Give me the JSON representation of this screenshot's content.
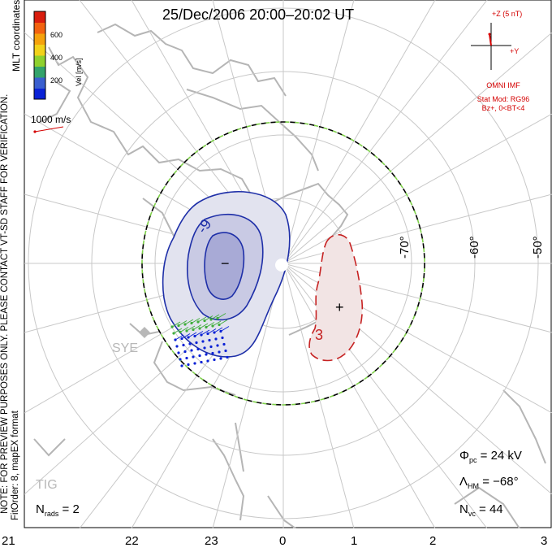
{
  "title": "25/Dec/2006 20:00–20:02 UT",
  "coords_note": "MLT coordinates",
  "colorbar": {
    "label": "Vel [m/s]",
    "ticks": [
      "600",
      "400",
      "200"
    ],
    "colors": [
      "#0a22d6",
      "#3a5fcf",
      "#33a36b",
      "#8fd12e",
      "#f2d21a",
      "#f5a20c",
      "#f2620f",
      "#d91d0e"
    ]
  },
  "reference_vector": "1000 m/s",
  "preview_note": "NOTE: FOR PREVIEW PURPOSES ONLY. PLEASE CONTACT VT-SD STAFF FOR VERIFICATION.",
  "fit_note": "FitOrder: 8, mapEX format",
  "imf": {
    "z_label": "+Z (5 nT)",
    "y_label": "+Y",
    "source": "OMNI IMF",
    "model": "Stat Mod: RG96",
    "conditions": "Bz+, 0<BT<4"
  },
  "mlt_ticks": [
    "21",
    "22",
    "23",
    "0",
    "1",
    "2",
    "3"
  ],
  "lat_labels": [
    "-70°",
    "-60°",
    "-50°"
  ],
  "sites": [
    "SYE",
    "TIG"
  ],
  "contours": {
    "neg_label": "-9",
    "pos_label": "3",
    "neg_sign": "−",
    "pos_sign": "+"
  },
  "stats": {
    "phi_sym": "Φ",
    "phi_sub": "pc",
    "phi_val": "= 24 kV",
    "lam_sym": "Λ",
    "lam_sub": "HM",
    "lam_val": "= −68°",
    "nvc_sym": "N",
    "nvc_sub": "vc",
    "nvc_val": "= 44",
    "nrads_sym": "N",
    "nrads_sub": "rads",
    "nrads_val": "= 2"
  }
}
